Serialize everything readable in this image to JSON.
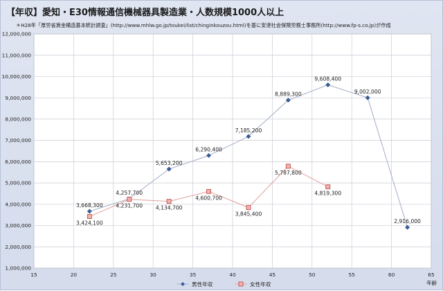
{
  "header": {
    "title": "【年収】愛知・E30情報通信機械器具製造業・人数規模1000人以上",
    "source": "＊H28年「厚労省賃金構造基本統計調査」(http://www.mhlw.go.jp/toukei/list/chinginkouzou.html)を基に安達社会保険労務士事務所(http://www.fp-s.co.jp)が作成"
  },
  "chart_data": {
    "type": "line",
    "title": "【年収】愛知・E30情報通信機械器具製造業・人数規模1000人以上",
    "xlabel": "年齢",
    "ylabel": "",
    "xlim": [
      15,
      65
    ],
    "ylim": [
      1000000,
      12000000
    ],
    "x_ticks": [
      "15",
      "20",
      "25",
      "30",
      "35",
      "40",
      "45",
      "50",
      "55",
      "60",
      "65"
    ],
    "y_ticks": [
      "1,000,000",
      "2,000,000",
      "3,000,000",
      "4,000,000",
      "5,000,000",
      "6,000,000",
      "7,000,000",
      "8,000,000",
      "9,000,000",
      "10,000,000",
      "11,000,000",
      "12,000,000"
    ],
    "grid": true,
    "legend_position": "bottom",
    "series": [
      {
        "name": "男性年収",
        "color": "#3a5e99",
        "line_color": "#a9b3c9",
        "marker": "diamond",
        "label_pos": "above",
        "x": [
          22,
          27,
          32,
          37,
          42,
          47,
          52,
          57,
          62
        ],
        "values": [
          3668300,
          4257700,
          5653200,
          6290400,
          7185200,
          8889300,
          9608400,
          9002000,
          2916000
        ],
        "labels": [
          "3,668,300",
          "4,257,700",
          "5,653,200",
          "6,290,400",
          "7,185,200",
          "8,889,300",
          "9,608,400",
          "9,002,000",
          "2,916,000"
        ]
      },
      {
        "name": "女性年収",
        "color": "#c0504d",
        "fill_color": "#f2b3b0",
        "line_color": "#e3a8a6",
        "marker": "square",
        "label_pos": "below",
        "x": [
          22,
          27,
          32,
          37,
          42,
          47,
          52
        ],
        "values": [
          3424100,
          4231700,
          4134700,
          4600700,
          3845400,
          5787800,
          4819300
        ],
        "labels": [
          "3,424,100",
          "4,231,700",
          "4,134,700",
          "4,600,700",
          "3,845,400",
          "5,787,800",
          "4,819,300"
        ]
      }
    ]
  }
}
